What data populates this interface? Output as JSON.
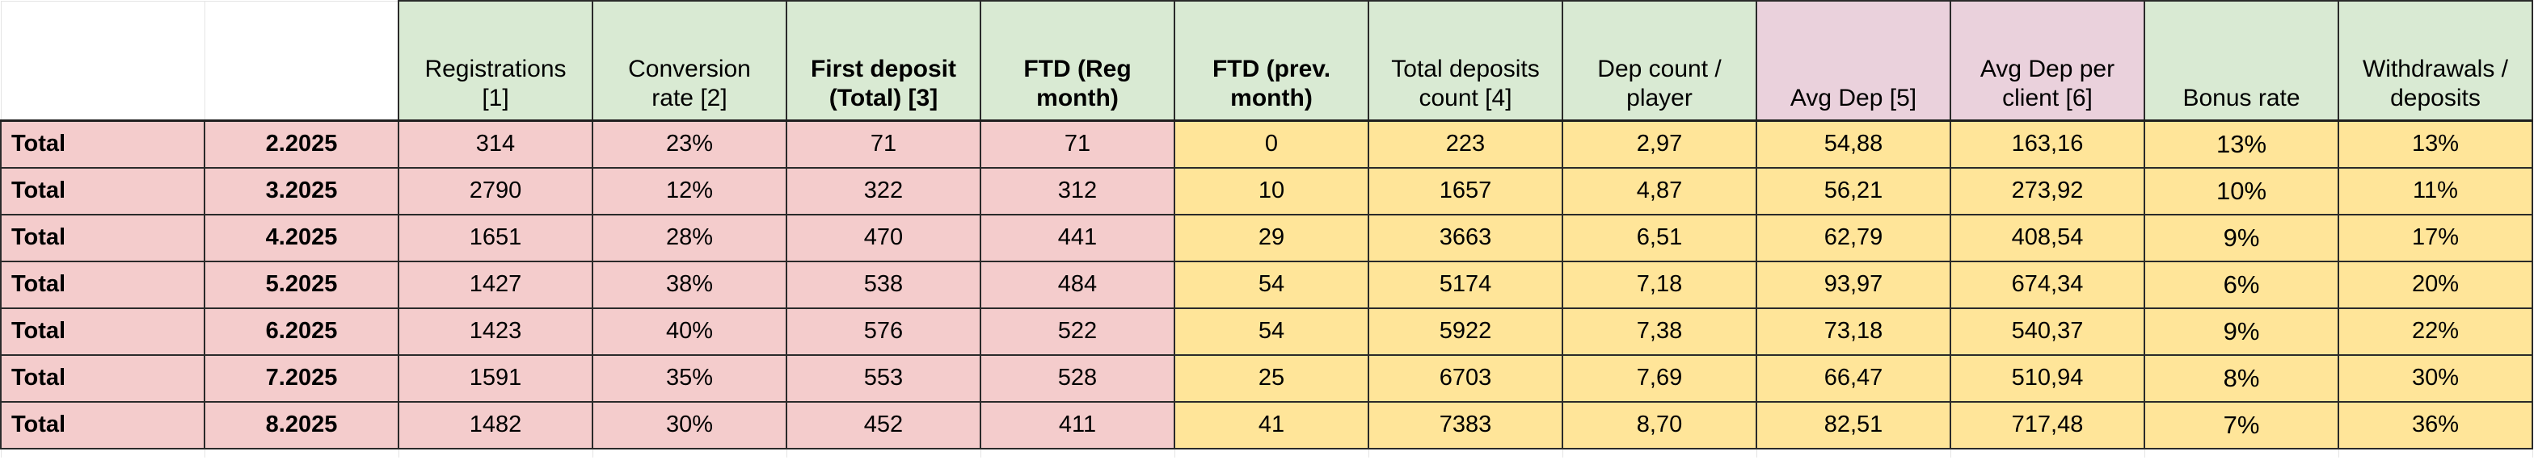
{
  "colors": {
    "header_green": "#d9ead3",
    "header_pink": "#ead1dc",
    "row_red": "#f4cccc",
    "row_yellow": "#ffe599",
    "border": "#2a2a2a"
  },
  "headers": [
    {
      "key": "row_label",
      "text": "",
      "fill": "white"
    },
    {
      "key": "month",
      "text": "",
      "fill": "white"
    },
    {
      "key": "registrations",
      "text": "Registrations [1]",
      "fill": "green",
      "bold": false
    },
    {
      "key": "conversion_rate",
      "text": "Conversion rate [2]",
      "fill": "green",
      "bold": false
    },
    {
      "key": "first_deposit_total",
      "text": "First deposit (Total) [3]",
      "fill": "green",
      "bold": true
    },
    {
      "key": "ftd_reg_month",
      "text": "FTD (Reg month)",
      "fill": "green",
      "bold": true
    },
    {
      "key": "ftd_prev_month",
      "text": "FTD (prev. month)",
      "fill": "green",
      "bold": true
    },
    {
      "key": "total_deposits_count",
      "text": "Total deposits count [4]",
      "fill": "green",
      "bold": false
    },
    {
      "key": "dep_count_per_player",
      "text": "Dep count / player",
      "fill": "green",
      "bold": false
    },
    {
      "key": "avg_dep",
      "text": "Avg Dep [5]",
      "fill": "pink",
      "bold": false
    },
    {
      "key": "avg_dep_per_client",
      "text": "Avg Dep per client [6]",
      "fill": "pink",
      "bold": false
    },
    {
      "key": "bonus_rate",
      "text": "Bonus rate",
      "fill": "green",
      "bold": false
    },
    {
      "key": "withdrawals_deposits",
      "text": "Withdrawals / deposits",
      "fill": "green",
      "bold": false
    }
  ],
  "rows": [
    {
      "cells": [
        "Total",
        "2.2025",
        "314",
        "23%",
        "71",
        "71",
        "0",
        "223",
        "2,97",
        "54,88",
        "163,16",
        "13%",
        "13%"
      ]
    },
    {
      "cells": [
        "Total",
        "3.2025",
        "2790",
        "12%",
        "322",
        "312",
        "10",
        "1657",
        "4,87",
        "56,21",
        "273,92",
        "10%",
        "11%"
      ]
    },
    {
      "cells": [
        "Total",
        "4.2025",
        "1651",
        "28%",
        "470",
        "441",
        "29",
        "3663",
        "6,51",
        "62,79",
        "408,54",
        "9%",
        "17%"
      ]
    },
    {
      "cells": [
        "Total",
        "5.2025",
        "1427",
        "38%",
        "538",
        "484",
        "54",
        "5174",
        "7,18",
        "93,97",
        "674,34",
        "6%",
        "20%"
      ]
    },
    {
      "cells": [
        "Total",
        "6.2025",
        "1423",
        "40%",
        "576",
        "522",
        "54",
        "5922",
        "7,38",
        "73,18",
        "540,37",
        "9%",
        "22%"
      ]
    },
    {
      "cells": [
        "Total",
        "7.2025",
        "1591",
        "35%",
        "553",
        "528",
        "25",
        "6703",
        "7,69",
        "66,47",
        "510,94",
        "8%",
        "30%"
      ]
    },
    {
      "cells": [
        "Total",
        "8.2025",
        "1482",
        "30%",
        "452",
        "411",
        "41",
        "7383",
        "8,70",
        "82,51",
        "717,48",
        "7%",
        "36%"
      ]
    }
  ]
}
